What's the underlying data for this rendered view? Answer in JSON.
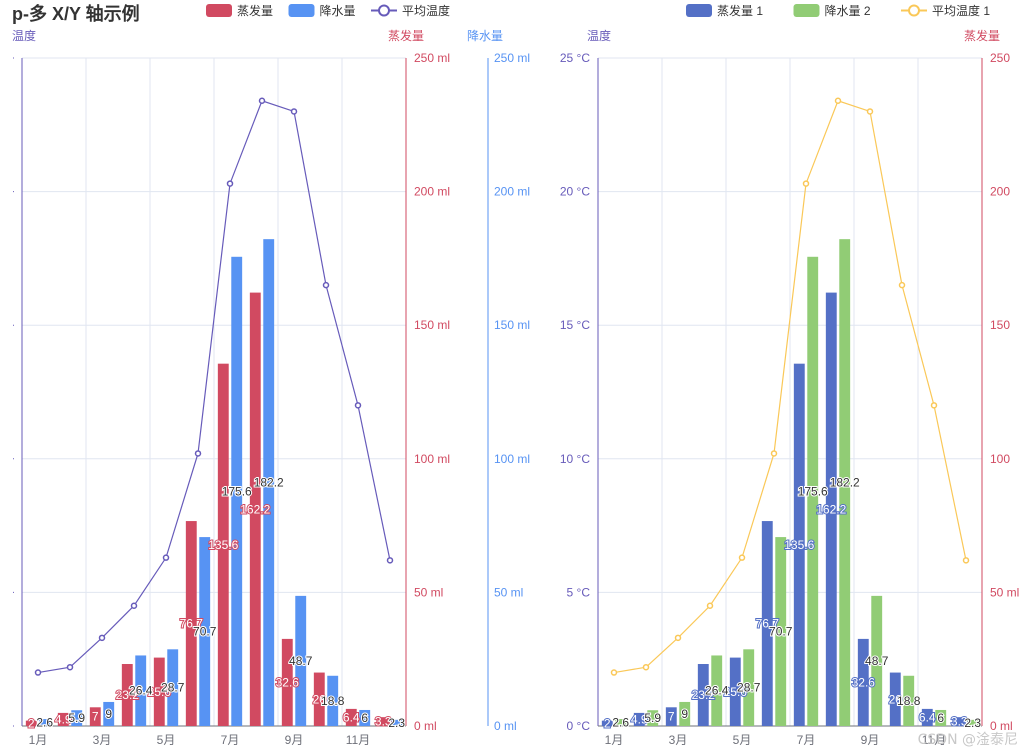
{
  "title": "p-多 X/Y 轴示例",
  "watermark": "CSDN @淦泰尼",
  "colors": {
    "evap": "#d14a61",
    "rain": "#5793f3",
    "temp": "#675bba",
    "evap1": "#5470c6",
    "rain2": "#91cc75",
    "temp1": "#fac858"
  },
  "chart_data": [
    {
      "type": "bar",
      "categories": [
        "1月",
        "2月",
        "3月",
        "4月",
        "5月",
        "6月",
        "7月",
        "8月",
        "9月",
        "10月",
        "11月",
        "12月"
      ],
      "x_tick_labels": [
        "1月",
        "3月",
        "5月",
        "7月",
        "9月",
        "11月"
      ],
      "series": [
        {
          "name": "蒸发量",
          "type": "bar",
          "axis": "evap",
          "values": [
            2,
            4.9,
            7,
            23.2,
            25.6,
            76.7,
            135.6,
            162.2,
            32.6,
            20,
            6.4,
            3.3
          ]
        },
        {
          "name": "降水量",
          "type": "bar",
          "axis": "rain",
          "values": [
            2.6,
            5.9,
            9,
            26.4,
            28.7,
            70.7,
            175.6,
            182.2,
            48.7,
            18.8,
            6,
            2.3
          ]
        },
        {
          "name": "平均温度",
          "type": "line",
          "axis": "temp",
          "values": [
            2.0,
            2.2,
            3.3,
            4.5,
            6.3,
            10.2,
            20.3,
            23.4,
            23.0,
            16.5,
            12.0,
            6.2
          ]
        }
      ],
      "axes": {
        "temp": {
          "name": "温度",
          "range": [
            0,
            25
          ],
          "tick_labels": [
            "",
            "",
            "",
            "",
            "",
            ""
          ]
        },
        "evap": {
          "name": "蒸发量",
          "range": [
            0,
            250
          ],
          "tick_labels": [
            "0 ml",
            "50 ml",
            "100 ml",
            "150 ml",
            "200 ml",
            "250 ml"
          ]
        },
        "rain": {
          "name": "降水量",
          "range": [
            0,
            250
          ],
          "tick_labels": [
            "0 ml",
            "50 ml",
            "100 ml",
            "150 ml",
            "200 ml",
            "250 ml"
          ]
        }
      },
      "legend": [
        {
          "name": "蒸发量",
          "type": "bar"
        },
        {
          "name": "降水量",
          "type": "bar"
        },
        {
          "name": "平均温度",
          "type": "line"
        }
      ],
      "legend_position": "top",
      "grid": true
    },
    {
      "type": "bar",
      "categories": [
        "1月",
        "2月",
        "3月",
        "4月",
        "5月",
        "6月",
        "7月",
        "8月",
        "9月",
        "10月",
        "11月",
        "12月"
      ],
      "x_tick_labels": [
        "1月",
        "3月",
        "5月",
        "7月",
        "9月",
        "11月"
      ],
      "series": [
        {
          "name": "蒸发量 1",
          "type": "bar",
          "axis": "evap",
          "values": [
            2,
            4.9,
            7,
            23.2,
            25.6,
            76.7,
            135.6,
            162.2,
            32.6,
            20,
            6.4,
            3.3
          ]
        },
        {
          "name": "降水量 2",
          "type": "bar",
          "axis": "evap",
          "values": [
            2.6,
            5.9,
            9,
            26.4,
            28.7,
            70.7,
            175.6,
            182.2,
            48.7,
            18.8,
            6,
            2.3
          ]
        },
        {
          "name": "平均温度 1",
          "type": "line",
          "axis": "temp",
          "values": [
            2.0,
            2.2,
            3.3,
            4.5,
            6.3,
            10.2,
            20.3,
            23.4,
            23.0,
            16.5,
            12.0,
            6.2
          ]
        }
      ],
      "axes": {
        "temp": {
          "name": "温度",
          "range": [
            0,
            25
          ],
          "tick_labels": [
            "0 °C",
            "5 °C",
            "10 °C",
            "15 °C",
            "20 °C",
            "25 °C"
          ]
        },
        "evap": {
          "name": "蒸发量",
          "range": [
            0,
            250
          ],
          "tick_labels": [
            "0 ml",
            "50 ml",
            "100",
            "150",
            "200",
            "250"
          ]
        }
      },
      "legend": [
        {
          "name": "蒸发量 1",
          "type": "bar"
        },
        {
          "name": "降水量 2",
          "type": "bar"
        },
        {
          "name": "平均温度 1",
          "type": "line"
        }
      ],
      "legend_position": "top",
      "grid": true
    }
  ]
}
